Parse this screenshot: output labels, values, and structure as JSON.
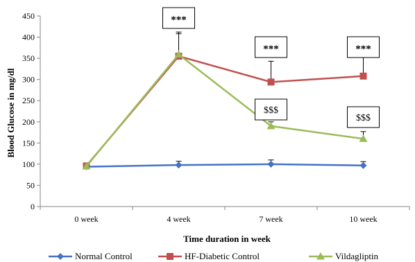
{
  "chart_data": {
    "type": "line",
    "title": "",
    "xlabel": "Time duration in week",
    "ylabel": "Blood Glucose in  mg/dl",
    "categories": [
      "0 week",
      "4 week",
      "7 week",
      "10 week"
    ],
    "ylim": [
      0,
      450
    ],
    "yticks": [
      "0",
      "50",
      "100",
      "150",
      "200",
      "250",
      "300",
      "350",
      "400",
      "450"
    ],
    "grid": false,
    "legend_position": "bottom",
    "series": [
      {
        "name": "Normal Control",
        "values": [
          94,
          98,
          100,
          97
        ],
        "errors": [
          0,
          9,
          10,
          9
        ],
        "color": "#4472C4",
        "marker": "diamond"
      },
      {
        "name": "HF-Diabetic Control",
        "values": [
          96,
          355,
          294,
          308
        ],
        "errors": [
          0,
          57,
          49,
          47
        ],
        "color": "#C0504D",
        "marker": "square"
      },
      {
        "name": "Vildagliptin",
        "values": [
          95,
          359,
          190,
          160
        ],
        "errors": [
          0,
          49,
          10,
          17
        ],
        "color": "#9BBB59",
        "marker": "triangle"
      }
    ],
    "annotations": [
      {
        "text": "***",
        "category": "4 week"
      },
      {
        "text": "***",
        "category": "7 week"
      },
      {
        "text": "***",
        "category": "10 week"
      },
      {
        "text": "$$$",
        "category": "7 week"
      },
      {
        "text": "$$$",
        "category": "10 week"
      }
    ]
  }
}
